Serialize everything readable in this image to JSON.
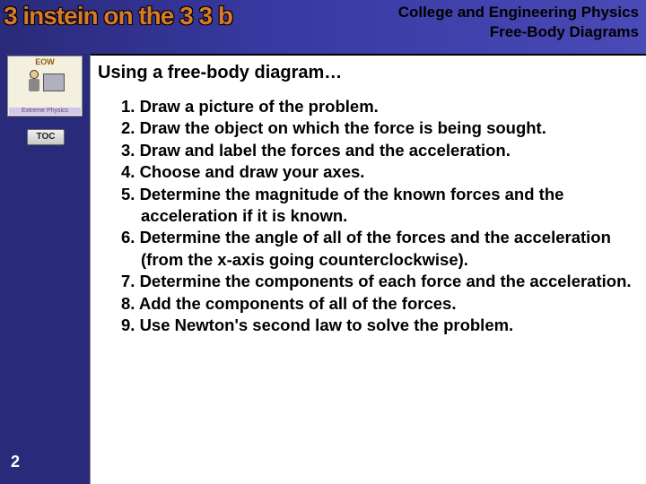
{
  "banner": {
    "logo_text": "3 instein on the 3 3 b",
    "header_line1": "College and Engineering Physics",
    "header_line2": "Free-Body Diagrams"
  },
  "sidebar": {
    "thumb_top": "EOW",
    "thumb_bottom": "Extreme Physics",
    "toc_label": "TOC",
    "page_number": "2"
  },
  "content": {
    "title": "Using a free-body diagram…",
    "steps": [
      "1. Draw a picture of the problem.",
      "2. Draw the object on which the force is being sought.",
      "3. Draw and label the forces and the acceleration.",
      "4. Choose and draw your axes.",
      "5. Determine the magnitude of the known forces and the acceleration if it is known.",
      "6. Determine the angle of all of the forces and the acceleration (from the x-axis going counterclockwise).",
      "7. Determine the components of each force and the acceleration.",
      "8. Add the components of all of the forces.",
      "9. Use Newton's second law to solve the problem."
    ]
  },
  "colors": {
    "sidebar_bg": "#2a2a7a",
    "banner_grad_start": "#2a2a7a",
    "banner_grad_end": "#4a4ab8",
    "logo_color": "#d97a2a",
    "text_black": "#000000",
    "page_num_color": "#ffffff"
  }
}
